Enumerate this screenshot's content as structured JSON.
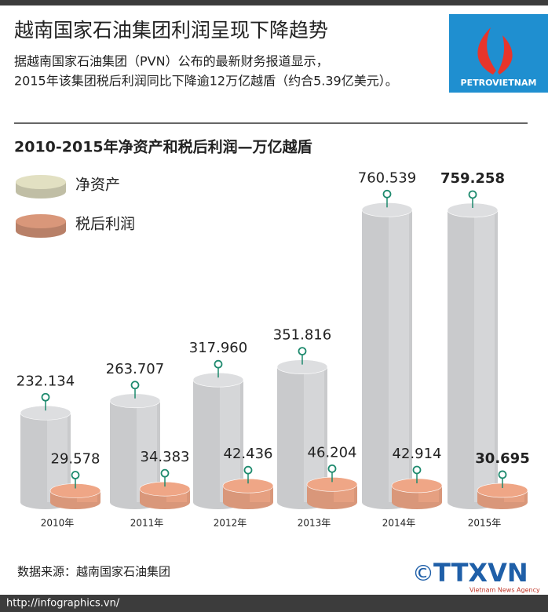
{
  "header": {
    "title": "越南国家石油集团利润呈现下降趋势",
    "subtitle_lines": [
      "据越南国家石油集团（PVN）公布的最新财务报道显示，",
      "2015年该集团税后利润同比下降逾12万亿越盾（约合5.39亿美元）。"
    ],
    "logo_text": "PETROVIETNAM"
  },
  "chart_data": {
    "type": "bar",
    "title": "2010-2015年净资产和税后利润—万亿越盾",
    "categories": [
      "2010年",
      "2011年",
      "2012年",
      "2013年",
      "2014年",
      "2015年"
    ],
    "series": [
      {
        "name": "净资产",
        "color": "#c9cacc",
        "values": [
          232.134,
          263.707,
          317.96,
          351.816,
          760.539,
          759.258
        ],
        "value_labels": [
          "232.134",
          "263.707",
          "317.960",
          "351.816",
          "760.539",
          "759.258"
        ]
      },
      {
        "name": "税后利润",
        "color": "#d9977a",
        "values": [
          29.578,
          34.383,
          42.436,
          46.204,
          42.914,
          30.695
        ]
      }
    ]
  },
  "footer": {
    "source": "数据来源：越南国家石油集团",
    "url": "http://infographics.vn/",
    "agency": "TTXVN",
    "agency_sub": "Vietnam News Agency",
    "copyright": "©"
  }
}
